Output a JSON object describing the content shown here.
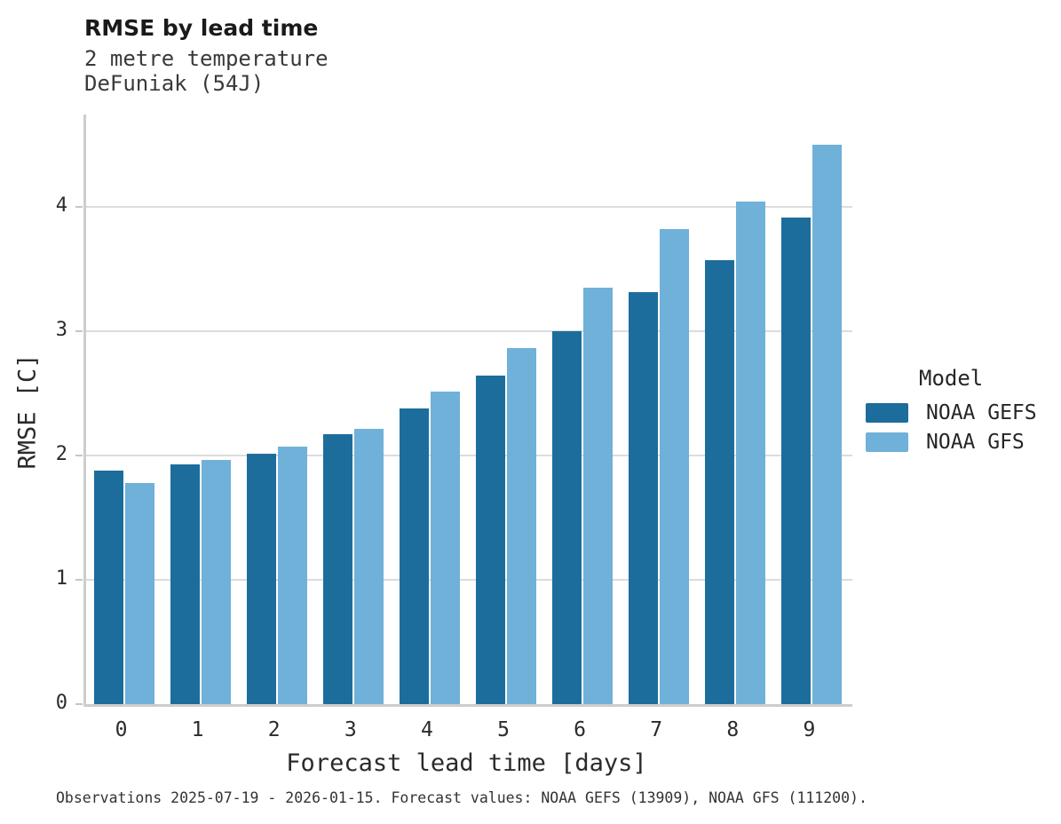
{
  "header": {
    "title": "RMSE by lead time",
    "subtitle_line1": "2 metre temperature",
    "subtitle_line2": "DeFuniak (54J)"
  },
  "chart_data": {
    "type": "bar",
    "title": "RMSE by lead time",
    "subtitle": [
      "2 metre temperature",
      "DeFuniak (54J)"
    ],
    "categories": [
      "0",
      "1",
      "2",
      "3",
      "4",
      "5",
      "6",
      "7",
      "8",
      "9"
    ],
    "series": [
      {
        "name": "NOAA GEFS",
        "color": "#1c6d9c",
        "values": [
          1.88,
          1.93,
          2.01,
          2.17,
          2.38,
          2.64,
          3.0,
          3.31,
          3.57,
          3.91
        ]
      },
      {
        "name": "NOAA GFS",
        "color": "#6fb1d8",
        "values": [
          1.78,
          1.96,
          2.07,
          2.21,
          2.51,
          2.86,
          3.35,
          3.82,
          4.04,
          4.5
        ]
      }
    ],
    "xlabel": "Forecast lead time [days]",
    "ylabel": "RMSE [C]",
    "ylim": [
      0,
      4.74
    ],
    "yticks": [
      0,
      1,
      2,
      3,
      4
    ],
    "grid": true,
    "gridline_color": "#dcdcdc",
    "legend_title": "Model",
    "legend_position": "right"
  },
  "legend": {
    "title": "Model",
    "items": [
      {
        "label": "NOAA GEFS",
        "color": "#1c6d9c"
      },
      {
        "label": "NOAA GFS",
        "color": "#6fb1d8"
      }
    ]
  },
  "footer": {
    "caption": "Observations 2025-07-19 - 2026-01-15. Forecast values: NOAA GEFS (13909), NOAA GFS (111200)."
  }
}
